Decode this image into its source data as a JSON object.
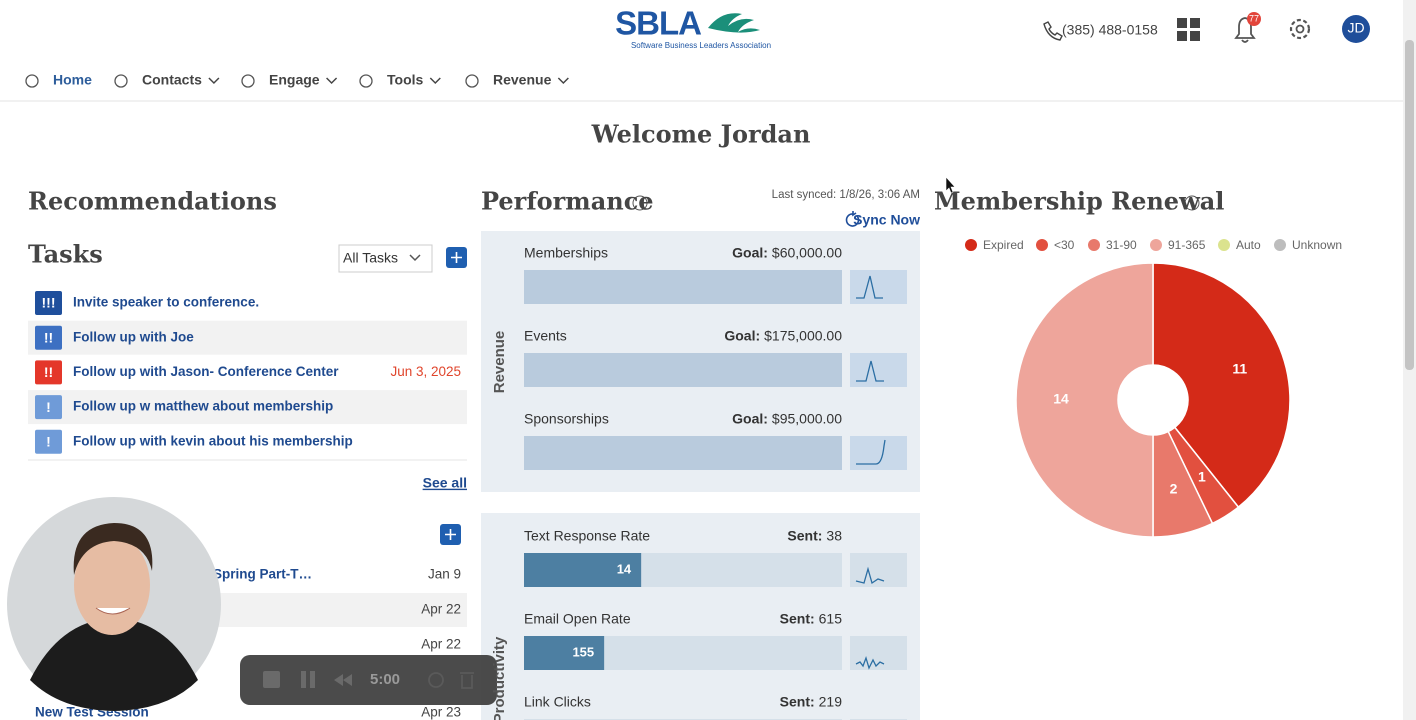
{
  "header": {
    "logo": "SBLA",
    "logo_tagline": "Software Business Leaders Association",
    "phone": "(385) 488-0158",
    "notifications": "77",
    "avatar": "JD"
  },
  "nav": [
    "Home",
    "Contacts",
    "Engage",
    "Tools",
    "Revenue"
  ],
  "welcome": "Welcome Jordan",
  "recommendations": {
    "title": "Recommendations",
    "tasks": {
      "title": "Tasks",
      "filter": "All Tasks",
      "items": [
        {
          "priority": "!!!",
          "label": "Invite speaker to conference."
        },
        {
          "priority": "!!",
          "label": "Follow up with Joe"
        },
        {
          "priority": "!!",
          "label": "Follow up with Jason- Conference Center",
          "date": "Jun 3, 2025"
        },
        {
          "priority": "!",
          "label": "Follow up w matthew about membership"
        },
        {
          "priority": "!",
          "label": "Follow up with kevin about his membership"
        }
      ],
      "see_all": "See all"
    },
    "sessions": [
      {
        "label": "Spring Part-T…",
        "date": "Jan 9"
      },
      {
        "date": "Apr 22"
      },
      {
        "date": "Apr 22"
      },
      {
        "label": "New Test Session",
        "date": "Apr 23"
      }
    ]
  },
  "video": {
    "time": "5:00"
  },
  "performance": {
    "title": "Performance",
    "last_synced": "Last synced: 1/8/26, 3:06 AM",
    "sync": "Sync Now",
    "groups": [
      {
        "label": "Revenue",
        "items": [
          {
            "name": "Memberships",
            "goal_label": "Goal:",
            "goal": "$60,000.00"
          },
          {
            "name": "Events",
            "goal_label": "Goal:",
            "goal": "$175,000.00"
          },
          {
            "name": "Sponsorships",
            "goal_label": "Goal:",
            "goal": "$95,000.00"
          }
        ]
      },
      {
        "label": "Productivity",
        "items": [
          {
            "name": "Text Response Rate",
            "sent_label": "Sent:",
            "sent": 38,
            "value": 14
          },
          {
            "name": "Email Open Rate",
            "sent_label": "Sent:",
            "sent": 615,
            "value": 155
          },
          {
            "name": "Link Clicks",
            "sent_label": "Sent:",
            "sent": 219
          }
        ]
      }
    ]
  },
  "membership_renewal": {
    "title": "Membership Renewal",
    "type": "pie",
    "categories": [
      "Expired",
      "<30",
      "31-90",
      "91-365",
      "Auto",
      "Unknown"
    ],
    "values": [
      11,
      1,
      2,
      14,
      0,
      0
    ],
    "colors": [
      "#d42a18",
      "#e2503f",
      "#e8796b",
      "#eea59b",
      "#dbe38e",
      "#bdbdbd"
    ]
  }
}
